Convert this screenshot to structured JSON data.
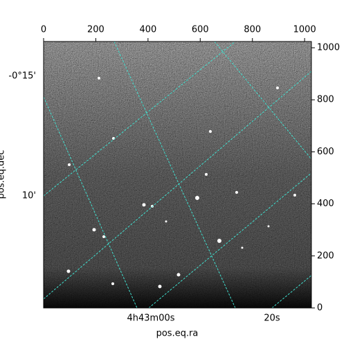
{
  "chart_data": {
    "type": "image",
    "xlabel": "pos.eq.ra",
    "ylabel": "pos.eq.dec",
    "xlim": [
      0,
      1026
    ],
    "xticks": [
      0,
      200,
      400,
      600,
      800,
      1000
    ],
    "ylim": [
      0,
      1024
    ],
    "yticks": [
      0,
      200,
      400,
      600,
      800,
      1000
    ],
    "ra_ticks": [
      "4h43m00s",
      "20s"
    ],
    "dec_ticks": [
      "-0°15'",
      "10'"
    ],
    "grid": true,
    "grid_color": "#40e0d0"
  }
}
